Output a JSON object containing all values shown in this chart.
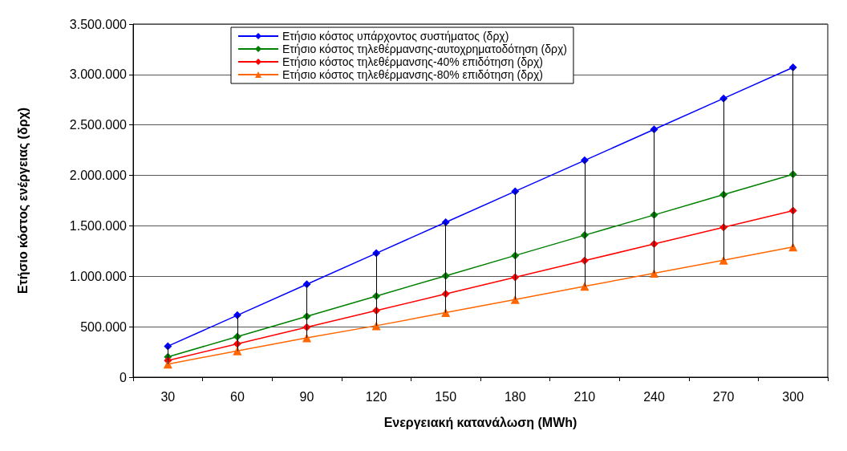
{
  "chart_data": {
    "type": "line",
    "xlabel": "Ενεργειακή κατανάλωση (MWh)",
    "ylabel": "Ετήσιο κόστος ενέργειας (δρχ)",
    "categories": [
      "30",
      "60",
      "90",
      "120",
      "150",
      "180",
      "210",
      "240",
      "270",
      "300"
    ],
    "series": [
      {
        "name": "Ετήσιο κόστος υπάρχοντος συστήματος (δρχ)",
        "color": "#0000ff",
        "marker": "diamond",
        "values": [
          307000,
          614000,
          921000,
          1228000,
          1535000,
          1842000,
          2149000,
          2456000,
          2763000,
          3070000
        ],
        "errors": [
          [
            130000,
            307000
          ],
          [
            260000,
            614000
          ],
          [
            390000,
            921000
          ],
          [
            510000,
            1228000
          ],
          [
            640000,
            1535000
          ],
          [
            770000,
            1842000
          ],
          [
            900000,
            2149000
          ],
          [
            1030000,
            2456000
          ],
          [
            1160000,
            2763000
          ],
          [
            1290000,
            3070000
          ]
        ]
      },
      {
        "name": "Ετήσιο κόστος τηλεθέρμανσης-αυτοχρηματοδότηση (δρχ)",
        "color": "#008000",
        "marker": "diamond",
        "values": [
          201000,
          402000,
          603000,
          804000,
          1005000,
          1206000,
          1407000,
          1608000,
          1809000,
          2010000
        ]
      },
      {
        "name": "Ετήσιο κόστος τηλεθέρμανσης-40% επιδότηση (δρχ)",
        "color": "#ff0000",
        "marker": "diamond",
        "values": [
          165000,
          330000,
          495000,
          660000,
          825000,
          990000,
          1155000,
          1320000,
          1485000,
          1650000
        ]
      },
      {
        "name": "Ετήσιο κόστος τηλεθέρμανσης-80% επιδότηση (δρχ)",
        "color": "#ff6600",
        "marker": "triangle",
        "values": [
          130000,
          260000,
          390000,
          510000,
          640000,
          770000,
          900000,
          1030000,
          1160000,
          1290000
        ]
      }
    ],
    "ylim": [
      0,
      3500000
    ],
    "yticks": [
      0,
      {
        "value": 500000,
        "label": "500.000"
      },
      {
        "value": 1000000,
        "label": "1.000.000"
      },
      {
        "value": 1500000,
        "label": "1.500.000"
      },
      {
        "value": 2000000,
        "label": "2.000.000"
      },
      {
        "value": 2500000,
        "label": "2.500.000"
      },
      {
        "value": 3000000,
        "label": "3.000.000"
      },
      {
        "value": 3500000,
        "label": "3.500.000"
      }
    ],
    "grid": "y",
    "legend": "top",
    "line_style": "solid"
  }
}
